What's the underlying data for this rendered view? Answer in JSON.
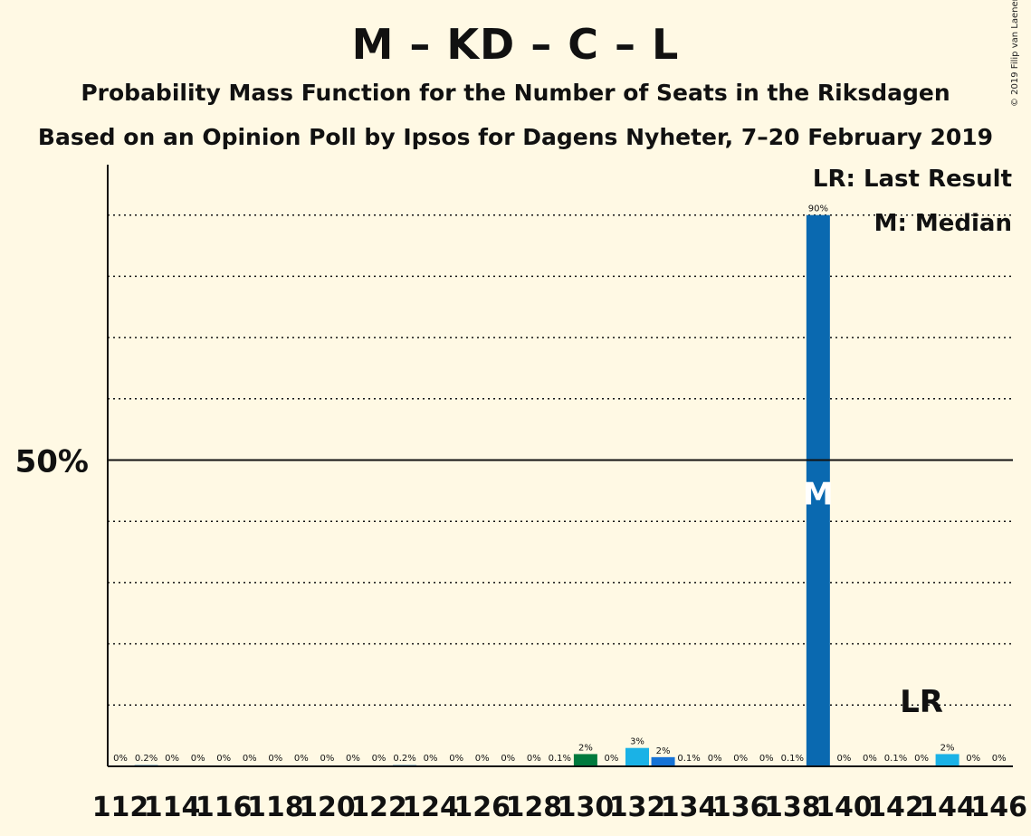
{
  "title": "M – KD – C – L",
  "subtitle": "Probability Mass Function for the Number of Seats in the Riksdagen",
  "subtitle2": "Based on an Opinion Poll by Ipsos for Dagens Nyheter, 7–20 February 2019",
  "copyright": "© 2019 Filip van Laenen",
  "legend": {
    "last_result": "LR: Last Result",
    "median": "M: Median"
  },
  "colors": {
    "background": "#fff9e4",
    "median_bar": "#0a69b0",
    "last_result_bar": "#1ab2e6",
    "green_bar": "#007a3d",
    "blue_bar": "#1673d6"
  },
  "chart_data": {
    "type": "bar",
    "xlabel": "",
    "ylabel": "",
    "ylim": [
      0,
      100
    ],
    "y_tick_label": "50%",
    "y_tick_value": 50,
    "gridlines": [
      10,
      20,
      30,
      40,
      60,
      70,
      80,
      90
    ],
    "x_tick_labels": [
      "112",
      "114",
      "116",
      "118",
      "120",
      "122",
      "124",
      "126",
      "128",
      "130",
      "132",
      "134",
      "136",
      "138",
      "140",
      "142",
      "144",
      "146"
    ],
    "categories": [
      112,
      113,
      114,
      115,
      116,
      117,
      118,
      119,
      120,
      121,
      122,
      123,
      124,
      125,
      126,
      127,
      128,
      129,
      130,
      131,
      132,
      133,
      134,
      135,
      136,
      137,
      138,
      139,
      140,
      141,
      142,
      143,
      144,
      145,
      146
    ],
    "values": [
      0,
      0.2,
      0,
      0,
      0,
      0,
      0,
      0,
      0,
      0,
      0,
      0.2,
      0,
      0,
      0,
      0,
      0,
      0.1,
      2,
      0,
      3,
      1.5,
      0.1,
      0,
      0,
      0,
      0.1,
      90,
      0,
      0,
      0.1,
      0,
      2,
      0,
      0
    ],
    "labels": [
      "0%",
      "0.2%",
      "0%",
      "0%",
      "0%",
      "0%",
      "0%",
      "0%",
      "0%",
      "0%",
      "0%",
      "0.2%",
      "0%",
      "0%",
      "0%",
      "0%",
      "0%",
      "0.1%",
      "2%",
      "0%",
      "3%",
      "2%",
      "0.1%",
      "0%",
      "0%",
      "0%",
      "0.1%",
      "90%",
      "0%",
      "0%",
      "0.1%",
      "0%",
      "2%",
      "0%",
      "0%"
    ],
    "bar_colors": {
      "130": "#007a3d",
      "132": "#1ab2e6",
      "133": "#1673d6",
      "139": "#0a69b0",
      "144": "#1ab2e6"
    },
    "median_seat": 139,
    "median_marker": "M",
    "last_result_seat": 143,
    "last_result_marker": "LR"
  }
}
